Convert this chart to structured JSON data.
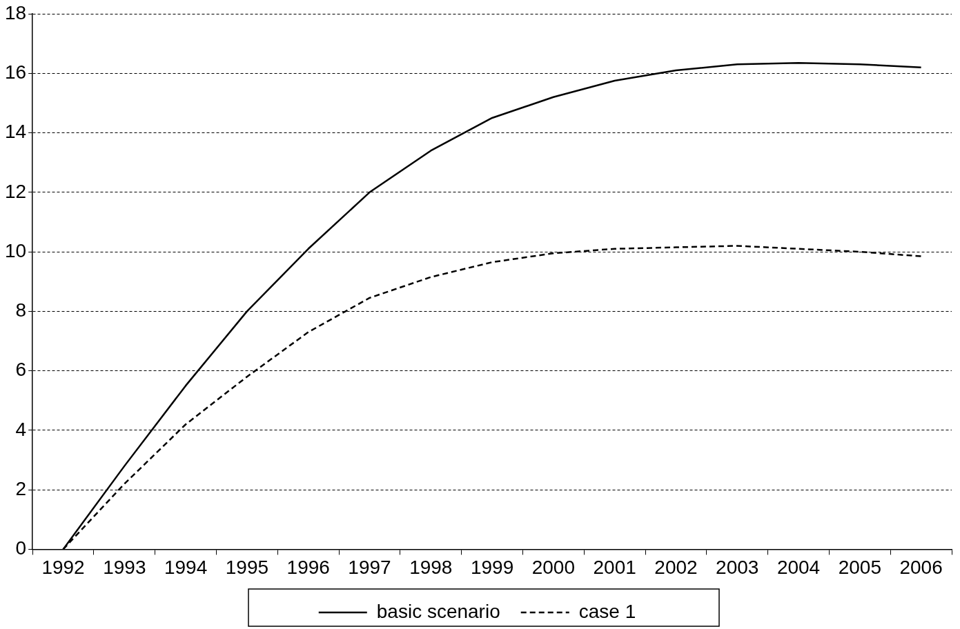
{
  "chart_data": {
    "type": "line",
    "categories": [
      "1992",
      "1993",
      "1994",
      "1995",
      "1996",
      "1997",
      "1998",
      "1999",
      "2000",
      "2001",
      "2002",
      "2003",
      "2004",
      "2005",
      "2006"
    ],
    "series": [
      {
        "name": "basic scenario",
        "color": "#000000",
        "line_style": "solid",
        "values": [
          0,
          2.8,
          5.5,
          8.0,
          10.1,
          12.0,
          13.4,
          14.5,
          15.2,
          15.75,
          16.1,
          16.3,
          16.35,
          16.3,
          16.2
        ]
      },
      {
        "name": "case 1",
        "color": "#000000",
        "line_style": "dashed",
        "values": [
          0,
          2.2,
          4.2,
          5.8,
          7.3,
          8.45,
          9.15,
          9.65,
          9.95,
          10.1,
          10.15,
          10.2,
          10.1,
          10.0,
          9.85
        ]
      }
    ],
    "ylim": [
      0,
      18
    ],
    "yticks": [
      0,
      2,
      4,
      6,
      8,
      10,
      12,
      14,
      16,
      18
    ],
    "grid": "y",
    "legend": "bottom",
    "marker": "none"
  }
}
